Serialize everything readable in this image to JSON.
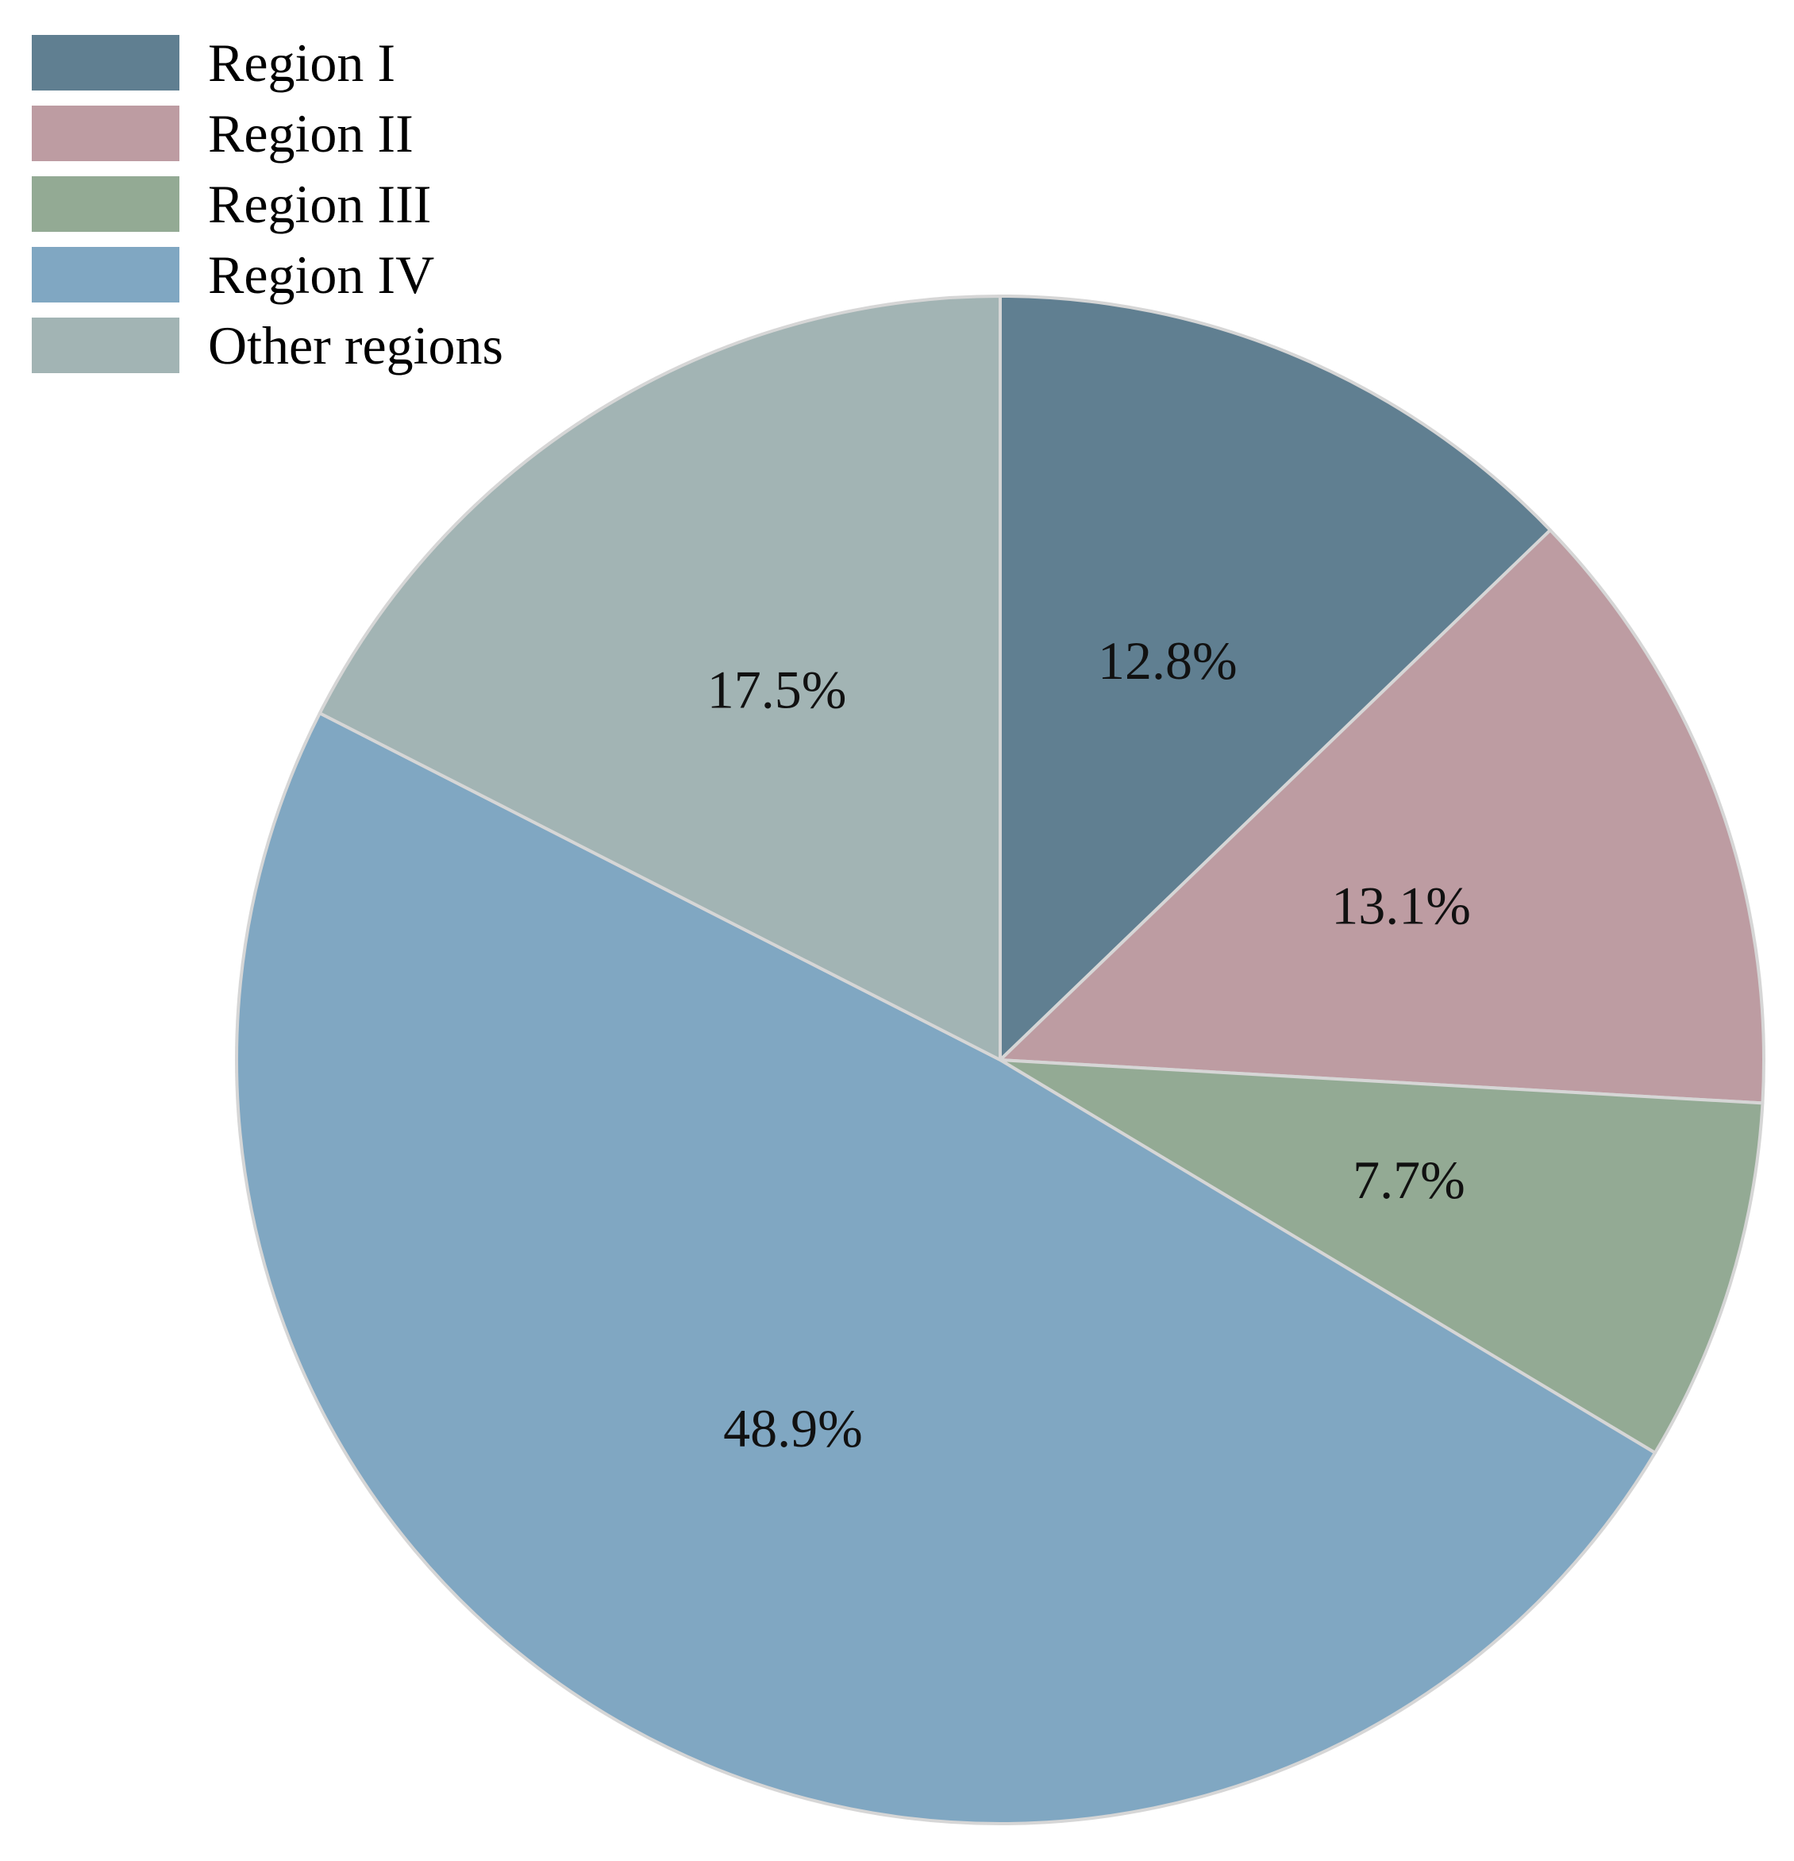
{
  "chart_data": {
    "type": "pie",
    "categories": [
      "Region I",
      "Region II",
      "Region III",
      "Region IV",
      "Other regions"
    ],
    "values": [
      12.8,
      13.1,
      7.7,
      48.9,
      17.5
    ],
    "labels": [
      "12.8%",
      "13.1%",
      "7.7%",
      "48.9%",
      "17.5%"
    ],
    "colors": [
      "#607f91",
      "#bd9ca2",
      "#93aa94",
      "#80a7c2",
      "#a2b4b4"
    ],
    "start": "12 o'clock",
    "direction": "clockwise",
    "legend_position": "top-left",
    "title": ""
  },
  "legend": {
    "items": [
      {
        "label": "Region I",
        "color": "#607f91"
      },
      {
        "label": "Region II",
        "color": "#bd9ca2"
      },
      {
        "label": "Region III",
        "color": "#93aa94"
      },
      {
        "label": "Region IV",
        "color": "#80a7c2"
      },
      {
        "label": "Other regions",
        "color": "#a2b4b4"
      }
    ]
  }
}
